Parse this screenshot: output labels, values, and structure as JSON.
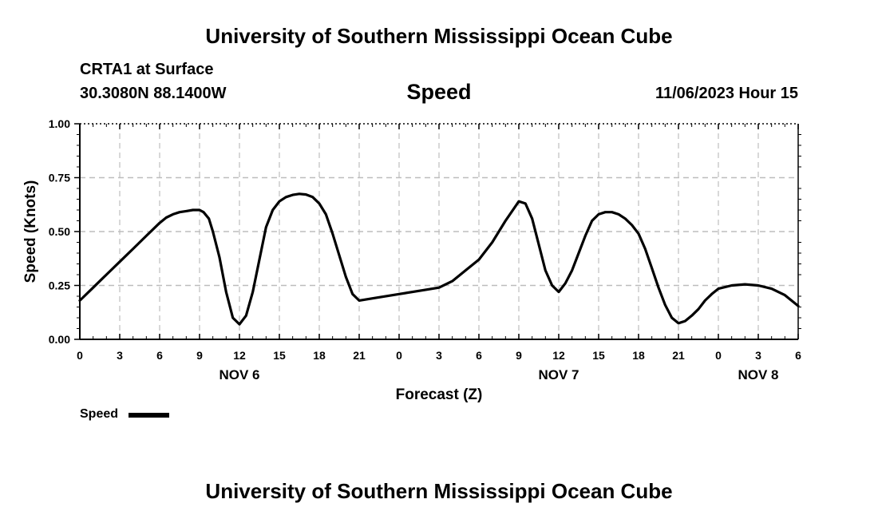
{
  "header": {
    "title": "University of Southern Mississippi Ocean Cube",
    "station": "CRTA1 at Surface",
    "coords": "30.3080N  88.1400W",
    "variable": "Speed",
    "datetime": "11/06/2023 Hour 15"
  },
  "footer": {
    "title": "University of Southern Mississippi Ocean Cube"
  },
  "legend": {
    "label": "Speed",
    "color": "#000000"
  },
  "chart_data": {
    "type": "line",
    "title": "Speed",
    "xlabel": "Forecast (Z)",
    "ylabel": "Speed (Knots)",
    "xlim": [
      0,
      54
    ],
    "ylim": [
      0,
      1.0
    ],
    "grid": true,
    "x_ticks": [
      {
        "x": 0,
        "label": "0"
      },
      {
        "x": 3,
        "label": "3"
      },
      {
        "x": 6,
        "label": "6"
      },
      {
        "x": 9,
        "label": "9"
      },
      {
        "x": 12,
        "label": "12"
      },
      {
        "x": 15,
        "label": "15"
      },
      {
        "x": 18,
        "label": "18"
      },
      {
        "x": 21,
        "label": "21"
      },
      {
        "x": 24,
        "label": "0"
      },
      {
        "x": 27,
        "label": "3"
      },
      {
        "x": 30,
        "label": "6"
      },
      {
        "x": 33,
        "label": "9"
      },
      {
        "x": 36,
        "label": "12"
      },
      {
        "x": 39,
        "label": "15"
      },
      {
        "x": 42,
        "label": "18"
      },
      {
        "x": 45,
        "label": "21"
      },
      {
        "x": 48,
        "label": "0"
      },
      {
        "x": 51,
        "label": "3"
      },
      {
        "x": 54,
        "label": "6"
      }
    ],
    "day_labels": [
      {
        "x": 12,
        "label": "NOV 6"
      },
      {
        "x": 36,
        "label": "NOV 7"
      },
      {
        "x": 51,
        "label": "NOV 8"
      }
    ],
    "y_ticks": [
      {
        "y": 0,
        "label": "0.00"
      },
      {
        "y": 0.25,
        "label": "0.25"
      },
      {
        "y": 0.5,
        "label": "0.50"
      },
      {
        "y": 0.75,
        "label": "0.75"
      },
      {
        "y": 1.0,
        "label": "1.00"
      }
    ],
    "series": [
      {
        "name": "Speed",
        "x": [
          0,
          1,
          2,
          3,
          4,
          5,
          6,
          6.5,
          7,
          7.5,
          8,
          8.5,
          9,
          9.3,
          9.7,
          10,
          10.5,
          11,
          11.5,
          12,
          12.5,
          13,
          13.5,
          14,
          14.5,
          15,
          15.5,
          16,
          16.5,
          17,
          17.5,
          18,
          18.5,
          19,
          19.5,
          20,
          20.5,
          21,
          22,
          24,
          26,
          27,
          28,
          29,
          30,
          31,
          32,
          33,
          33.5,
          34,
          34.5,
          35,
          35.5,
          36,
          36.5,
          37,
          37.5,
          38,
          38.5,
          39,
          39.5,
          40,
          40.5,
          41,
          41.5,
          42,
          42.5,
          43,
          43.5,
          44,
          44.5,
          45,
          45.5,
          46,
          46.5,
          47,
          47.5,
          48,
          49,
          50,
          51,
          52,
          53,
          54
        ],
        "values": [
          0.18,
          0.24,
          0.3,
          0.36,
          0.42,
          0.48,
          0.54,
          0.565,
          0.58,
          0.59,
          0.595,
          0.6,
          0.6,
          0.59,
          0.56,
          0.5,
          0.38,
          0.22,
          0.1,
          0.07,
          0.11,
          0.22,
          0.37,
          0.52,
          0.6,
          0.64,
          0.66,
          0.67,
          0.675,
          0.672,
          0.66,
          0.63,
          0.58,
          0.49,
          0.39,
          0.29,
          0.21,
          0.18,
          0.19,
          0.21,
          0.23,
          0.24,
          0.27,
          0.32,
          0.37,
          0.45,
          0.55,
          0.64,
          0.63,
          0.56,
          0.44,
          0.32,
          0.25,
          0.22,
          0.26,
          0.32,
          0.4,
          0.48,
          0.55,
          0.58,
          0.59,
          0.59,
          0.58,
          0.56,
          0.53,
          0.49,
          0.42,
          0.33,
          0.24,
          0.16,
          0.1,
          0.075,
          0.085,
          0.11,
          0.14,
          0.18,
          0.21,
          0.235,
          0.25,
          0.255,
          0.25,
          0.235,
          0.205,
          0.155
        ],
        "color": "#000000"
      }
    ]
  }
}
